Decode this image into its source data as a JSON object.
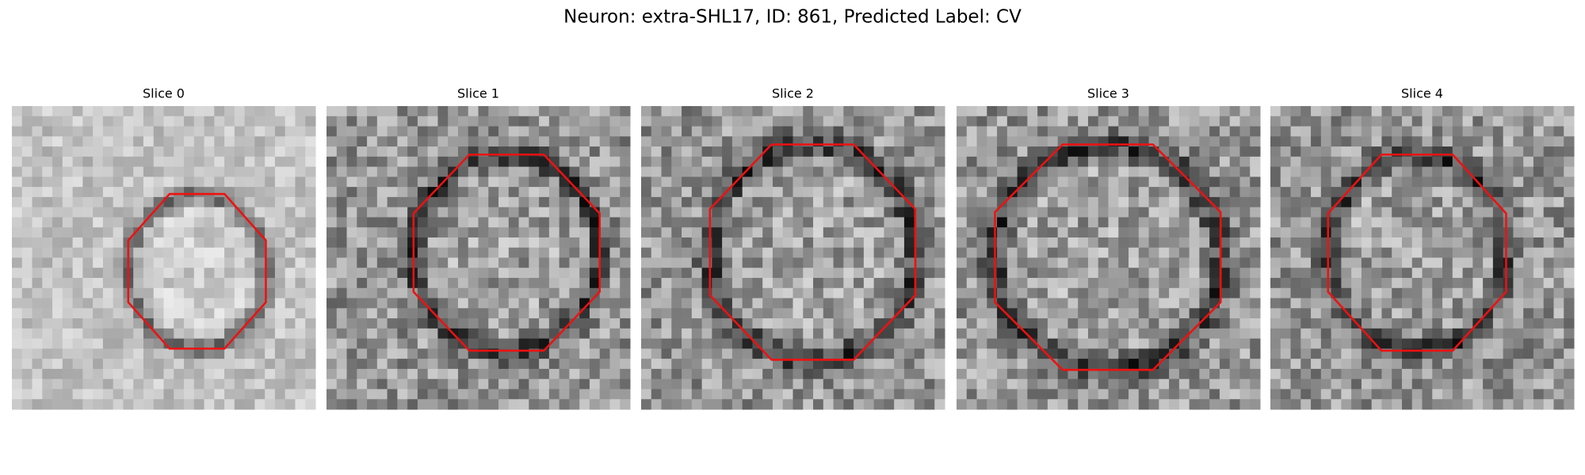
{
  "title": "Neuron: extra-SHL17, ID: 861, Predicted Label: CV",
  "panels": [
    {
      "title": "Slice 0"
    },
    {
      "title": "Slice 1"
    },
    {
      "title": "Slice 2"
    },
    {
      "title": "Slice 3"
    },
    {
      "title": "Slice 4"
    }
  ]
}
